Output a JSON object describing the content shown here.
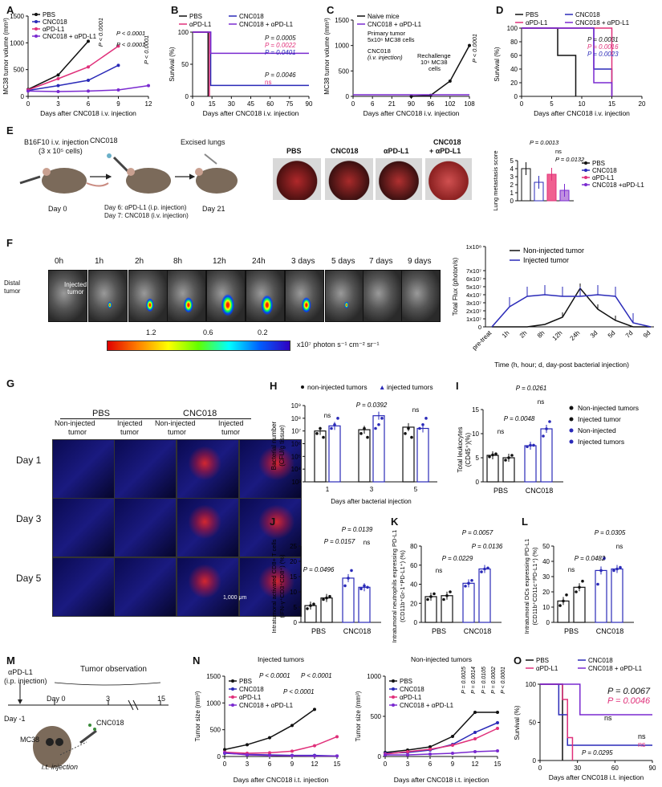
{
  "panels": {
    "A": {
      "label": "A",
      "ylabel": "MC38 tumor volume (mm³)",
      "xlabel": "Days after CNC018 i.v. injection",
      "legend": [
        "PBS",
        "CNC018",
        "αPD-L1",
        "CNC018 + αPD-L1"
      ],
      "pvals": [
        "P < 0.0001",
        "P < 0.0001",
        "P < 0.0001",
        "P < 0.0001"
      ],
      "yticks": [
        "0",
        "500",
        "1000",
        "1500"
      ],
      "xticks": [
        "0",
        "3",
        "6",
        "9",
        "12"
      ]
    },
    "B": {
      "label": "B",
      "ylabel": "Survival (%)",
      "xlabel": "Days after CNC018 i.v. injection",
      "legend": [
        "PBS",
        "CNC018",
        "αPD-L1",
        "CNC018 + αPD-L1"
      ],
      "pvals": [
        "P = 0.0005",
        "P = 0.0022",
        "P = 0.0401",
        "P = 0.0046",
        "ns"
      ],
      "yticks": [
        "0",
        "50",
        "100"
      ],
      "xticks": [
        "0",
        "15",
        "30",
        "45",
        "60",
        "75",
        "90"
      ]
    },
    "C": {
      "label": "C",
      "ylabel": "MC38 tumor volume (mm³)",
      "xlabel": "Days after CNC018 i.v. injection",
      "legend": [
        "Naive mice",
        "CNC018 + αPD-L1"
      ],
      "pval": "P < 0.0001",
      "annot1": "Primary tumor",
      "annot1b": "5x10⁶ MC38 cells",
      "annot2": "CNC018",
      "annot2b": "(i.v. injection)",
      "annot3": "Rechallenge",
      "annot3b": "10⁶ MC38",
      "annot3c": "cells",
      "yticks": [
        "0",
        "500",
        "1000",
        "1500"
      ],
      "xticks": [
        "0",
        "6",
        "21",
        "90",
        "96",
        "102",
        "108"
      ]
    },
    "D": {
      "label": "D",
      "ylabel": "Survival (%)",
      "xlabel": "Days after CNC018 i.v. injection",
      "legend": [
        "PBS",
        "CNC018",
        "αPD-L1",
        "CNC018 + αPD-L1"
      ],
      "pvals": [
        "P = 0.0031",
        "P = 0.0016",
        "P = 0.0023"
      ],
      "yticks": [
        "0",
        "20",
        "40",
        "60",
        "80",
        "100"
      ],
      "xticks": [
        "0",
        "5",
        "10",
        "15",
        "20"
      ]
    },
    "E": {
      "label": "E",
      "step1": "B16F10 i.v. injection",
      "step1b": "(3 x 10⁵ cells)",
      "drug": "CNC018",
      "excised": "Excised lungs",
      "day0": "Day 0",
      "day6": "Day 6: αPD-L1 (i.p. injection)",
      "day7": "Day 7: CNC018 (i.v. injection)",
      "day21": "Day 21",
      "groups": [
        "PBS",
        "CNC018",
        "αPD-L1",
        "CNC018",
        "+ αPD-L1"
      ],
      "ylabel": "Lung metastasis score",
      "pvals": [
        "P = 0.0013",
        "ns",
        "P = 0.0132"
      ],
      "legend": [
        "PBS",
        "CNC018",
        "αPD-L1",
        "CNC018 +αPD-L1"
      ],
      "yticks": [
        "0",
        "1",
        "2",
        "3",
        "4",
        "5"
      ]
    },
    "F": {
      "label": "F",
      "times": [
        "0h",
        "1h",
        "2h",
        "8h",
        "12h",
        "24h",
        "3 days",
        "5 days",
        "7 days",
        "9 days"
      ],
      "distal": "Distal",
      "distal2": "tumor",
      "injected": "Injected",
      "injected2": "tumor",
      "scale_ticks": [
        "1.2",
        "0.6",
        "0.2"
      ],
      "scale_unit": "x10⁷ photon s⁻¹ cm⁻² sr⁻¹",
      "ylabel": "Total Flux (photon/s)",
      "xlabel": "Time (h, hour; d, day-post bacterial injection)",
      "legend": [
        "Non-injected tumor",
        "Injected tumor"
      ],
      "yticks": [
        "0",
        "1x10⁷",
        "2x10⁷",
        "3x10⁷",
        "4x10⁷",
        "5x10⁷",
        "6x10⁷",
        "7x10⁷",
        "1x10⁸"
      ],
      "xticks": [
        "pre-treat",
        "1h",
        "2h",
        "8h",
        "12h",
        "24h",
        "3d",
        "5d",
        "7d",
        "9d"
      ]
    },
    "G": {
      "label": "G",
      "group1": "PBS",
      "group2": "CNC018",
      "col_labels": [
        "Non-injected",
        "tumor",
        "Injected",
        "tumor",
        "Non-injected",
        "tumor",
        "Injected",
        "tumor"
      ],
      "rows": [
        "Day 1",
        "Day 3",
        "Day 5"
      ],
      "scalebar": "1,000 μm"
    },
    "H": {
      "label": "H",
      "legend": [
        "non-injected tumors",
        "injected tumors"
      ],
      "ylabel": "Bacterial number",
      "ylabel2": "(CFU/g tissue)",
      "xlabel": "Days after bacterial injection",
      "pvals": [
        "ns",
        "P = 0.0392",
        "ns"
      ],
      "yticks": [
        "10³",
        "10⁴",
        "10⁵",
        "10⁶",
        "10⁷",
        "10⁸",
        "10⁹"
      ],
      "xticks": [
        "1",
        "3",
        "5"
      ]
    },
    "I": {
      "label": "I",
      "ylabel": "Total leukocytes",
      "ylabel2": "(CD45⁺)(%)",
      "pvals": [
        "P = 0.0261",
        "ns",
        "P = 0.0048",
        "ns"
      ],
      "groups": [
        "PBS",
        "CNC018"
      ],
      "legend": [
        "Non-injected tumors",
        "Injected tumor",
        "Non-injected",
        "Injected tumors"
      ],
      "yticks": [
        "0",
        "5",
        "10",
        "15"
      ]
    },
    "J": {
      "label": "J",
      "ylabel": "Intratumoral activated CD8+ T cells",
      "ylabel2": "(IFN-γ⁺CD3⁺CD8⁺) (%)",
      "pvals": [
        "P = 0.0139",
        "P = 0.0157",
        "ns",
        "P = 0.0496"
      ],
      "groups": [
        "PBS",
        "CNC018"
      ],
      "yticks": [
        "0",
        "5",
        "10",
        "15",
        "20",
        "25"
      ]
    },
    "K": {
      "label": "K",
      "ylabel": "Intratumoral neutrophils expressing PD-L1",
      "ylabel2": "(CD11b⁺Gr-1⁺PD-L1⁺) (%)",
      "pvals": [
        "P = 0.0057",
        "P = 0.0136",
        "P = 0.0229",
        "ns"
      ],
      "groups": [
        "PBS",
        "CNC018"
      ],
      "yticks": [
        "0",
        "20",
        "40",
        "60",
        "80"
      ]
    },
    "L": {
      "label": "L",
      "ylabel": "Intratumoral DCs expressing PD-L1",
      "ylabel2": "(CD11b⁺CD11c⁺PD-L1⁺) (%)",
      "pvals": [
        "P = 0.0305",
        "ns",
        "P = 0.0482",
        "ns"
      ],
      "groups": [
        "PBS",
        "CNC018"
      ],
      "yticks": [
        "0",
        "10",
        "20",
        "30",
        "40",
        "50"
      ]
    },
    "M": {
      "label": "M",
      "apdl1": "αPD-L1",
      "ip": "(i.p. injection)",
      "obs": "Tumor observation",
      "days": [
        "Day -1",
        "Day 0",
        "3",
        "15"
      ],
      "mc38": "MC38",
      "drug": "CNC018",
      "it": "i.t. injection"
    },
    "N": {
      "label": "N",
      "title1": "Injected tumors",
      "title2": "Non-injected tumors",
      "ylabel": "Tumor size (mm³)",
      "xlabel": "Days after CNC018 i.t. injection",
      "legend": [
        "PBS",
        "CNC018",
        "αPD-L1",
        "CNC018 + αPD-L1"
      ],
      "pvals1": [
        "P < 0.0001",
        "P < 0.0001",
        "P < 0.0001"
      ],
      "pvals2": [
        "P = 0.0025",
        "P = 0.0014",
        "P = 0.0105",
        "P = 0.0002",
        "P < 0.0001"
      ],
      "yticks": [
        "0",
        "500",
        "1000",
        "1500"
      ],
      "xticks": [
        "0",
        "3",
        "6",
        "9",
        "12",
        "15"
      ]
    },
    "O": {
      "label": "O",
      "legend": [
        "PBS",
        "CNC018",
        "αPD-L1",
        "CNC018 + αPD-L1"
      ],
      "pvals": [
        "P = 0.0067",
        "P = 0.0046",
        "ns",
        "ns",
        "ns",
        "P = 0.0295"
      ],
      "ylabel": "Survival (%)",
      "xlabel": "Days after CNC018 i.t. injection",
      "yticks": [
        "0",
        "50",
        "100"
      ],
      "xticks": [
        "0",
        "30",
        "60",
        "90"
      ]
    }
  },
  "colors": {
    "pbs": "#111111",
    "cnc018": "#2a2ab8",
    "apdl1": "#e0307a",
    "combo": "#7a2ad0"
  },
  "chart_data": [
    {
      "id": "A",
      "type": "line",
      "x": [
        0,
        3,
        6,
        9,
        12
      ],
      "series": [
        {
          "name": "PBS",
          "values": [
            130,
            400,
            1030,
            null,
            null
          ]
        },
        {
          "name": "CNC018",
          "values": [
            110,
            200,
            300,
            580,
            null
          ]
        },
        {
          "name": "αPD-L1",
          "values": [
            120,
            330,
            550,
            940,
            null
          ]
        },
        {
          "name": "CNC018 + αPD-L1",
          "values": [
            100,
            90,
            100,
            120,
            200
          ]
        }
      ],
      "ylim": [
        0,
        1500
      ]
    },
    {
      "id": "F",
      "type": "line",
      "x": [
        "pre-treat",
        "1h",
        "2h",
        "8h",
        "12h",
        "24h",
        "3d",
        "5d",
        "7d",
        "9d"
      ],
      "series": [
        {
          "name": "Non-injected tumor",
          "values": [
            0,
            0,
            0,
            0.3,
            1.2,
            4.8,
            2.2,
            0.8,
            0,
            0
          ]
        },
        {
          "name": "Injected tumor",
          "values": [
            0,
            2.5,
            3.8,
            4.0,
            3.8,
            3.8,
            4.0,
            3.8,
            0.5,
            0
          ]
        }
      ],
      "ylim": [
        0,
        10
      ]
    }
  ]
}
